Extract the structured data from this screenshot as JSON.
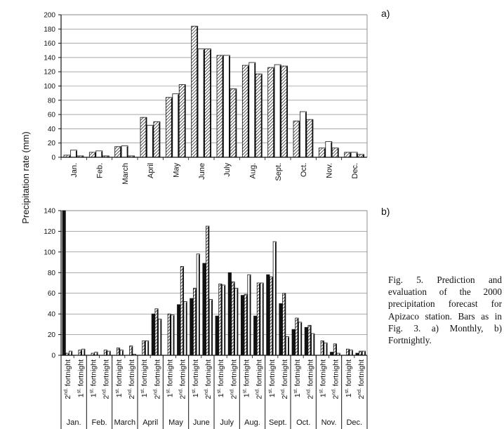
{
  "y_axis_label": "Precipitation rate (mm)",
  "caption": "Fig. 5. Prediction and evaluation of the 2000 precipitation forecast for Apizaco station. Bars as in Fig. 3. a) Monthly, b) Fortnightly.",
  "colors": {
    "axis": "#111111",
    "grid": "#777777",
    "bar_fill": "#ffffff",
    "bar_dark": "#111111"
  },
  "chart_data": [
    {
      "type": "bar",
      "panel_label": "a)",
      "title": "",
      "xlabel": "",
      "ylabel": "Precipitation rate (mm)",
      "ylim": [
        0,
        200
      ],
      "yticks": [
        "0",
        "20",
        "40",
        "60",
        "80",
        "100",
        "120",
        "140",
        "160",
        "180",
        "200"
      ],
      "grid": true,
      "categories": [
        "Jan.",
        "Feb.",
        "March",
        "April",
        "May",
        "June",
        "July",
        "Aug.",
        "Sept.",
        "Oct.",
        "Nov.",
        "Dec."
      ],
      "series": [
        {
          "name": "series 1 (hatched)",
          "pattern": "hatch",
          "values": [
            3,
            7,
            15,
            56,
            84,
            184,
            143,
            129,
            126,
            51,
            13,
            7
          ]
        },
        {
          "name": "series 2 (white)",
          "pattern": "white",
          "values": [
            10,
            9,
            16,
            45,
            89,
            152,
            143,
            133,
            130,
            64,
            22,
            7
          ]
        },
        {
          "name": "series 3 (hatched)",
          "pattern": "hatch",
          "values": [
            2,
            2,
            2,
            50,
            102,
            152,
            96,
            117,
            128,
            53,
            13,
            4
          ]
        }
      ]
    },
    {
      "type": "bar",
      "panel_label": "b)",
      "title": "",
      "xlabel": "",
      "ylabel": "Precipitation rate (mm)",
      "ylim": [
        0,
        140
      ],
      "yticks": [
        "0",
        "20",
        "40",
        "60",
        "80",
        "100",
        "120",
        "140"
      ],
      "grid": true,
      "fortnight_1_sup": "st.",
      "fortnight_2_sup": "nd.",
      "fortnight_word": "fortnight",
      "months": [
        "Jan.",
        "Feb.",
        "March",
        "April",
        "May",
        "June",
        "July",
        "Aug.",
        "Sept.",
        "Oct.",
        "Nov.",
        "Dec."
      ],
      "categories": [
        "Jan. 2nd",
        "Jan. 1st",
        "Feb. 1st",
        "Feb. 2nd",
        "March 1st",
        "March 2nd",
        "April 1st",
        "April 2nd",
        "May 1st",
        "May 2nd",
        "June 1st",
        "June 2nd",
        "July 1st",
        "July 2nd",
        "Aug. 1st",
        "Aug. 2nd",
        "Sept. 1st",
        "Sept. 2nd",
        "Oct. 1st",
        "Oct. 2nd",
        "Nov. 1st",
        "Nov. 2nd",
        "Dec. 1st",
        "Dec. 2nd"
      ],
      "category_labels": [
        [
          "2",
          "nd."
        ],
        [
          "1",
          "st."
        ],
        [
          "1",
          "st."
        ],
        [
          "2",
          "nd."
        ],
        [
          "1",
          "st."
        ],
        [
          "2",
          "nd."
        ],
        [
          "1",
          "st."
        ],
        [
          "2",
          "nd."
        ],
        [
          "1",
          "st."
        ],
        [
          "2",
          "nd."
        ],
        [
          "1",
          "st."
        ],
        [
          "2",
          "nd."
        ],
        [
          "1",
          "st."
        ],
        [
          "2",
          "nd."
        ],
        [
          "1",
          "st."
        ],
        [
          "2",
          "nd."
        ],
        [
          "1",
          "st."
        ],
        [
          "2",
          "nd."
        ],
        [
          "1",
          "st."
        ],
        [
          "2",
          "nd."
        ],
        [
          "1",
          "st."
        ],
        [
          "2",
          "nd."
        ],
        [
          "1",
          "st."
        ],
        [
          "2",
          "nd."
        ]
      ],
      "series": [
        {
          "name": "series 1 (black)",
          "pattern": "black",
          "values": [
            140,
            0,
            0,
            0,
            0,
            0,
            0,
            40,
            0,
            49,
            55,
            89,
            38,
            80,
            58,
            38,
            78,
            50,
            25,
            27,
            0,
            3,
            0,
            2
          ]
        },
        {
          "name": "series 2 (hatched)",
          "pattern": "hatch",
          "values": [
            2,
            5,
            2,
            5,
            7,
            9,
            14,
            45,
            40,
            86,
            65,
            125,
            69,
            71,
            59,
            70,
            76,
            60,
            36,
            29,
            14,
            11,
            6,
            4
          ]
        },
        {
          "name": "series 3 (white)",
          "pattern": "white",
          "values": [
            4,
            6,
            3,
            4,
            5,
            1,
            14,
            35,
            39,
            52,
            98,
            54,
            68,
            65,
            78,
            70,
            110,
            18,
            32,
            21,
            12,
            2,
            5,
            4
          ]
        }
      ]
    }
  ]
}
